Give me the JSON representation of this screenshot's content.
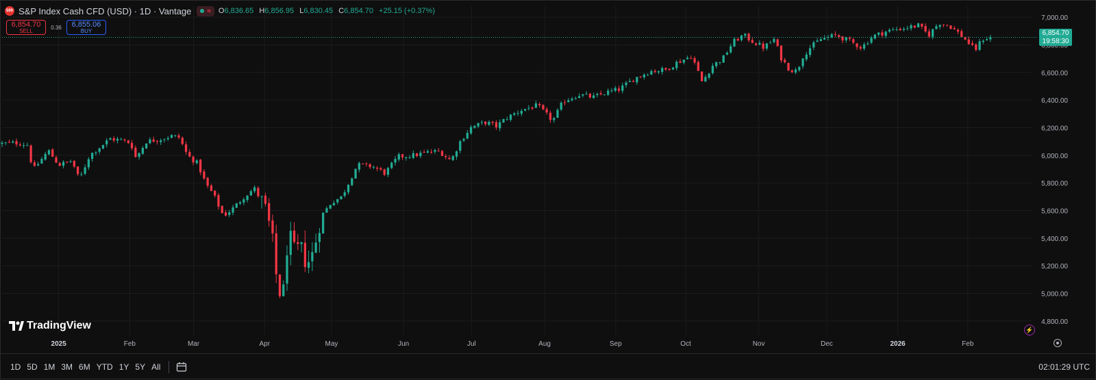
{
  "header": {
    "title": "S&P Index Cash CFD (USD) · 1D · Vantage",
    "logo_text": "500",
    "ohlc": {
      "o_label": "O",
      "o": "6,836.65",
      "h_label": "H",
      "h": "6,856.95",
      "l_label": "L",
      "l": "6,830.45",
      "c_label": "C",
      "c": "6,854.70",
      "change": "+25.15 (+0.37%)"
    }
  },
  "trade": {
    "sell_price": "6,854.70",
    "sell_label": "SELL",
    "spread": "0.36",
    "buy_price": "6,855.06",
    "buy_label": "BUY"
  },
  "price_tag": {
    "price": "6,854.70",
    "countdown": "19:58:30"
  },
  "branding": {
    "name": "TradingView"
  },
  "bottom": {
    "ranges": [
      "1D",
      "5D",
      "1M",
      "3M",
      "6M",
      "YTD",
      "1Y",
      "5Y",
      "All"
    ],
    "utc": "02:01:29 UTC"
  },
  "colors": {
    "up": "#22ab94",
    "down": "#f23645",
    "background": "#0f0f0f",
    "grid": "#1c1c1c",
    "axis_text": "#b2b5be"
  },
  "chart_data": {
    "type": "candlestick",
    "ylim": [
      4700,
      7080
    ],
    "yticks": [
      "7,000.00",
      "6,800.00",
      "6,600.00",
      "6,400.00",
      "6,200.00",
      "6,000.00",
      "5,800.00",
      "5,600.00",
      "5,400.00",
      "5,200.00",
      "5,000.00",
      "4,800.00"
    ],
    "ytick_values": [
      7000,
      6800,
      6600,
      6400,
      6200,
      6000,
      5800,
      5600,
      5400,
      5200,
      5000,
      4800
    ],
    "xticks": [
      {
        "label": "2025",
        "bold": true,
        "t": 0.055
      },
      {
        "label": "Feb",
        "bold": false,
        "t": 0.124
      },
      {
        "label": "Mar",
        "bold": false,
        "t": 0.186
      },
      {
        "label": "Apr",
        "bold": false,
        "t": 0.255
      },
      {
        "label": "May",
        "bold": false,
        "t": 0.32
      },
      {
        "label": "Jun",
        "bold": false,
        "t": 0.39
      },
      {
        "label": "Jul",
        "bold": false,
        "t": 0.456
      },
      {
        "label": "Aug",
        "bold": false,
        "t": 0.527
      },
      {
        "label": "Sep",
        "bold": false,
        "t": 0.596
      },
      {
        "label": "Oct",
        "bold": false,
        "t": 0.664
      },
      {
        "label": "Nov",
        "bold": false,
        "t": 0.735
      },
      {
        "label": "Dec",
        "bold": false,
        "t": 0.801
      },
      {
        "label": "2026",
        "bold": true,
        "t": 0.87
      },
      {
        "label": "Feb",
        "bold": false,
        "t": 0.938
      }
    ],
    "last_price": 6854.7,
    "anchors": [
      [
        0,
        6085
      ],
      [
        0.015,
        6090
      ],
      [
        0.025,
        6075
      ],
      [
        0.03,
        5890
      ],
      [
        0.045,
        6035
      ],
      [
        0.055,
        5930
      ],
      [
        0.068,
        5960
      ],
      [
        0.075,
        5820
      ],
      [
        0.085,
        6000
      ],
      [
        0.095,
        6060
      ],
      [
        0.105,
        6120
      ],
      [
        0.115,
        6110
      ],
      [
        0.125,
        6090
      ],
      [
        0.13,
        5980
      ],
      [
        0.14,
        6100
      ],
      [
        0.155,
        6120
      ],
      [
        0.165,
        6140
      ],
      [
        0.172,
        6130
      ],
      [
        0.18,
        6000
      ],
      [
        0.19,
        5940
      ],
      [
        0.198,
        5790
      ],
      [
        0.205,
        5720
      ],
      [
        0.215,
        5560
      ],
      [
        0.225,
        5620
      ],
      [
        0.235,
        5700
      ],
      [
        0.245,
        5760
      ],
      [
        0.255,
        5630
      ],
      [
        0.262,
        5420
      ],
      [
        0.268,
        5020
      ],
      [
        0.273,
        4990
      ],
      [
        0.278,
        5440
      ],
      [
        0.284,
        5300
      ],
      [
        0.29,
        5330
      ],
      [
        0.296,
        5210
      ],
      [
        0.302,
        5290
      ],
      [
        0.31,
        5560
      ],
      [
        0.32,
        5660
      ],
      [
        0.33,
        5700
      ],
      [
        0.345,
        5930
      ],
      [
        0.36,
        5920
      ],
      [
        0.372,
        5870
      ],
      [
        0.385,
        5990
      ],
      [
        0.4,
        6000
      ],
      [
        0.412,
        6020
      ],
      [
        0.425,
        6030
      ],
      [
        0.436,
        5960
      ],
      [
        0.445,
        6100
      ],
      [
        0.455,
        6200
      ],
      [
        0.47,
        6240
      ],
      [
        0.48,
        6210
      ],
      [
        0.49,
        6270
      ],
      [
        0.505,
        6330
      ],
      [
        0.52,
        6360
      ],
      [
        0.528,
        6300
      ],
      [
        0.535,
        6250
      ],
      [
        0.545,
        6390
      ],
      [
        0.56,
        6440
      ],
      [
        0.575,
        6420
      ],
      [
        0.585,
        6450
      ],
      [
        0.6,
        6480
      ],
      [
        0.615,
        6560
      ],
      [
        0.63,
        6610
      ],
      [
        0.645,
        6620
      ],
      [
        0.655,
        6670
      ],
      [
        0.67,
        6720
      ],
      [
        0.68,
        6530
      ],
      [
        0.69,
        6650
      ],
      [
        0.7,
        6700
      ],
      [
        0.71,
        6820
      ],
      [
        0.72,
        6870
      ],
      [
        0.73,
        6820
      ],
      [
        0.74,
        6780
      ],
      [
        0.75,
        6840
      ],
      [
        0.757,
        6700
      ],
      [
        0.765,
        6620
      ],
      [
        0.772,
        6610
      ],
      [
        0.778,
        6720
      ],
      [
        0.785,
        6780
      ],
      [
        0.795,
        6840
      ],
      [
        0.81,
        6870
      ],
      [
        0.825,
        6820
      ],
      [
        0.835,
        6780
      ],
      [
        0.845,
        6860
      ],
      [
        0.86,
        6900
      ],
      [
        0.875,
        6920
      ],
      [
        0.89,
        6940
      ],
      [
        0.9,
        6870
      ],
      [
        0.91,
        6960
      ],
      [
        0.92,
        6940
      ],
      [
        0.93,
        6880
      ],
      [
        0.938,
        6820
      ],
      [
        0.945,
        6760
      ],
      [
        0.952,
        6840
      ],
      [
        0.96,
        6854.7
      ]
    ]
  }
}
